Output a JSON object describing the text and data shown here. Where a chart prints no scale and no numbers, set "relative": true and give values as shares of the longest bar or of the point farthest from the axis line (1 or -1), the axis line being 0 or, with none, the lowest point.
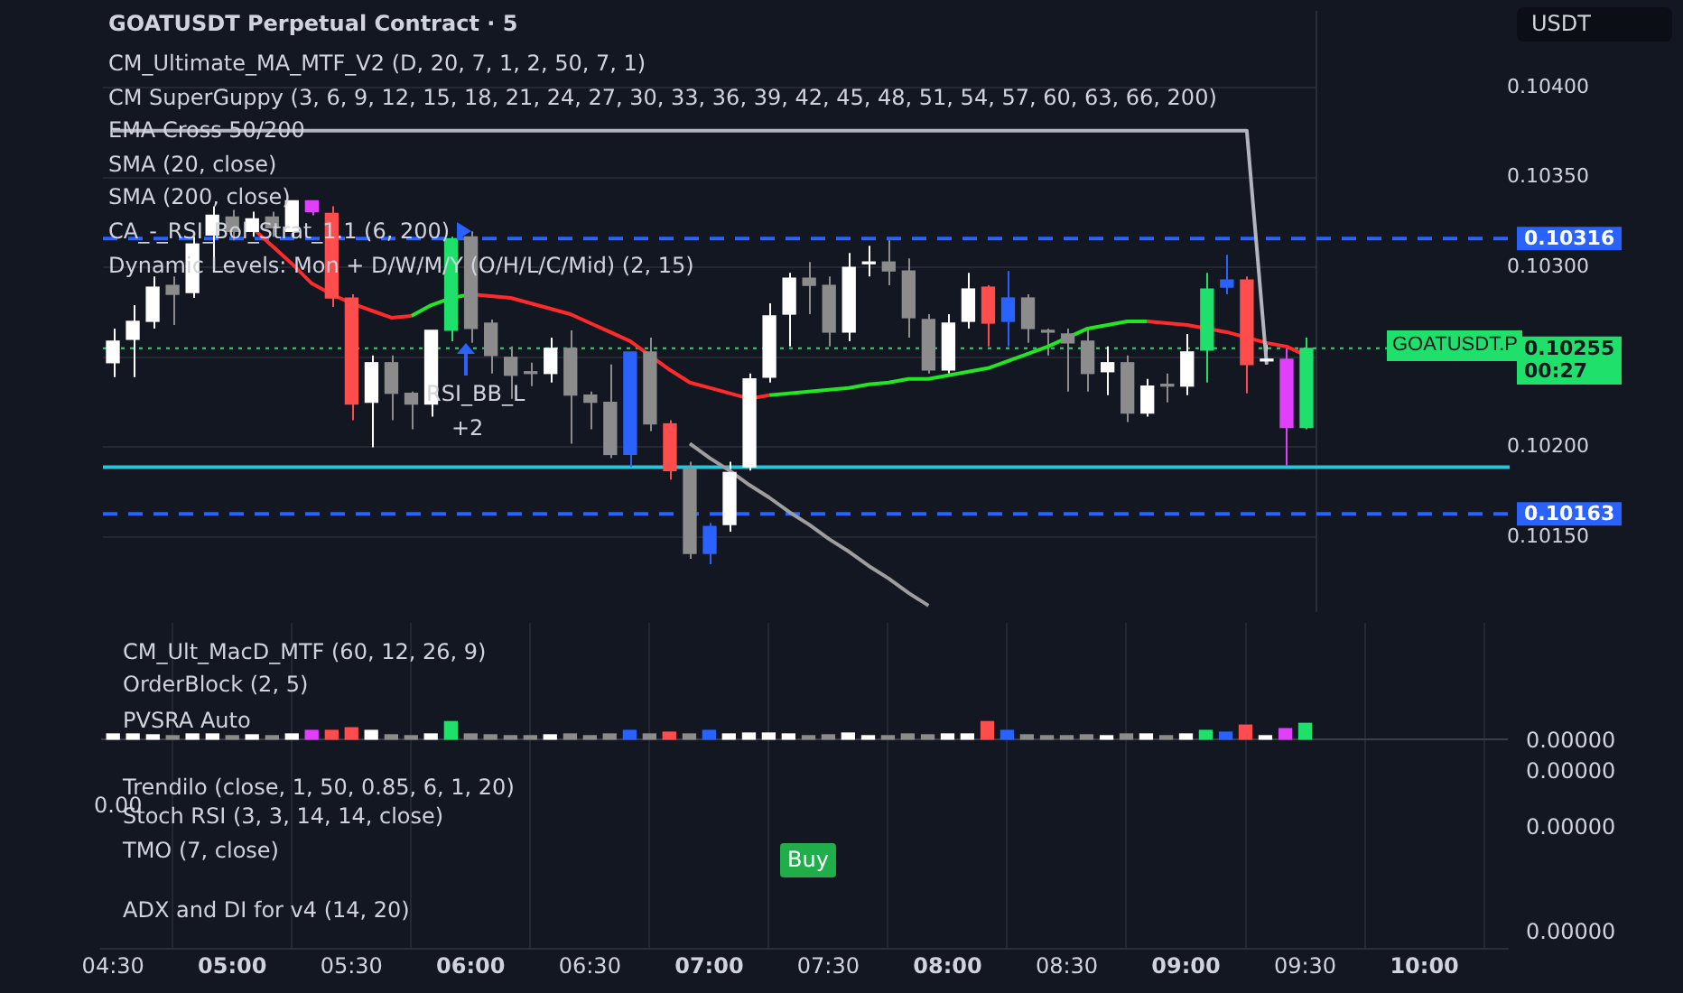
{
  "chart_data": [
    {
      "type": "candlestick",
      "title": "GOATUSDT Perpetual Contract · 5",
      "categories": [
        null,
        null,
        null,
        null,
        null,
        null,
        null,
        null,
        null,
        null,
        null,
        null,
        null,
        null,
        null,
        null,
        null,
        null,
        null,
        null,
        null,
        null,
        null,
        null,
        null,
        null,
        null,
        null,
        null,
        null,
        null,
        null,
        null,
        null,
        null,
        null,
        null,
        null,
        null,
        null,
        null,
        null,
        null,
        null,
        null,
        null,
        null,
        null,
        null,
        null,
        null,
        null,
        null,
        null,
        null,
        null,
        null,
        null,
        null,
        null,
        null
      ],
      "ohlc": [
        [
          0.10247,
          0.10266,
          0.10239,
          0.10259
        ],
        [
          0.1026,
          0.10279,
          0.10239,
          0.1027
        ],
        [
          0.1027,
          0.10295,
          0.10266,
          0.10289
        ],
        [
          0.1029,
          0.10295,
          0.10268,
          0.10285
        ],
        [
          0.10286,
          0.10317,
          0.10283,
          0.10313
        ],
        [
          0.10318,
          0.10334,
          0.10305,
          0.10329
        ],
        [
          0.10328,
          0.10332,
          0.10315,
          0.1032
        ],
        [
          0.1032,
          0.10331,
          0.10317,
          0.10327
        ],
        [
          0.10328,
          0.10331,
          0.10317,
          0.10322
        ],
        [
          0.1032,
          0.10337,
          0.10317,
          0.10337
        ],
        [
          0.10337,
          0.10337,
          0.10329,
          0.10331
        ],
        [
          0.1033,
          0.10334,
          0.10278,
          0.10283
        ],
        [
          0.10283,
          0.10285,
          0.10215,
          0.10224
        ],
        [
          0.10225,
          0.10251,
          0.102,
          0.10247
        ],
        [
          0.10247,
          0.10251,
          0.10215,
          0.1023
        ],
        [
          0.1023,
          0.10231,
          0.1021,
          0.10224
        ],
        [
          0.10224,
          0.10265,
          0.10217,
          0.10265
        ],
        [
          0.10265,
          0.10317,
          0.10259,
          0.10316
        ],
        [
          0.10317,
          0.1032,
          0.10258,
          0.10266
        ],
        [
          0.10269,
          0.10271,
          0.10241,
          0.10251
        ],
        [
          0.1025,
          0.10256,
          0.10227,
          0.1024
        ],
        [
          0.10241,
          0.10247,
          0.10234,
          0.10241
        ],
        [
          0.10241,
          0.10261,
          0.10236,
          0.10255
        ],
        [
          0.10255,
          0.10265,
          0.10202,
          0.10229
        ],
        [
          0.10229,
          0.10231,
          0.1021,
          0.10225
        ],
        [
          0.10225,
          0.10246,
          0.10194,
          0.10196
        ],
        [
          0.10196,
          0.10253,
          0.10189,
          0.10253
        ],
        [
          0.10253,
          0.10261,
          0.10209,
          0.10213
        ],
        [
          0.10213,
          0.10215,
          0.10182,
          0.10187
        ],
        [
          0.10188,
          0.10192,
          0.10138,
          0.10141
        ],
        [
          0.10141,
          0.10158,
          0.10135,
          0.10156
        ],
        [
          0.10157,
          0.10192,
          0.10153,
          0.10186
        ],
        [
          0.10189,
          0.10241,
          0.10187,
          0.10238
        ],
        [
          0.10239,
          0.1028,
          0.10236,
          0.10273
        ],
        [
          0.10274,
          0.10297,
          0.10256,
          0.10294
        ],
        [
          0.10294,
          0.10303,
          0.10274,
          0.1029
        ],
        [
          0.1029,
          0.10295,
          0.10256,
          0.10264
        ],
        [
          0.10264,
          0.10308,
          0.10259,
          0.103
        ],
        [
          0.10302,
          0.10312,
          0.10295,
          0.10302
        ],
        [
          0.10303,
          0.10315,
          0.1029,
          0.10298
        ],
        [
          0.10298,
          0.10305,
          0.10261,
          0.10272
        ],
        [
          0.10271,
          0.10274,
          0.10241,
          0.10243
        ],
        [
          0.10243,
          0.10274,
          0.10241,
          0.10269
        ],
        [
          0.1027,
          0.10297,
          0.10266,
          0.10288
        ],
        [
          0.10289,
          0.1029,
          0.10256,
          0.10269
        ],
        [
          0.1027,
          0.10298,
          0.10256,
          0.10283
        ],
        [
          0.10283,
          0.10285,
          0.10258,
          0.10266
        ],
        [
          0.10264,
          0.10266,
          0.10251,
          0.10264
        ],
        [
          0.10263,
          0.10266,
          0.10231,
          0.10258
        ],
        [
          0.10259,
          0.10266,
          0.10231,
          0.10241
        ],
        [
          0.10242,
          0.10256,
          0.10229,
          0.10247
        ],
        [
          0.10247,
          0.10251,
          0.10214,
          0.10219
        ],
        [
          0.10219,
          0.10238,
          0.10217,
          0.10234
        ],
        [
          0.10234,
          0.10241,
          0.10225,
          0.10234
        ],
        [
          0.10234,
          0.10263,
          0.10229,
          0.10253
        ],
        [
          0.10254,
          0.10297,
          0.10236,
          0.10288
        ],
        [
          0.10289,
          0.10307,
          0.10285,
          0.10293
        ],
        [
          0.10293,
          0.10295,
          0.1023,
          0.10246
        ],
        [
          0.10248,
          0.10258,
          0.10246,
          0.10248
        ],
        [
          0.10249,
          0.10256,
          0.1019,
          0.10211
        ],
        [
          0.10211,
          0.10261,
          0.1021,
          0.10255
        ]
      ],
      "colors": [
        "#ffffff",
        "#ffffff",
        "#ffffff",
        "#8c8c8c",
        "#ffffff",
        "#ffffff",
        "#8c8c8c",
        "#ffffff",
        "#8c8c8c",
        "#ffffff",
        "#e040fb",
        "#ff4d4d",
        "#ff4d4d",
        "#ffffff",
        "#8c8c8c",
        "#8c8c8c",
        "#ffffff",
        "#1fe06a",
        "#8c8c8c",
        "#8c8c8c",
        "#8c8c8c",
        "#8c8c8c",
        "#ffffff",
        "#8c8c8c",
        "#8c8c8c",
        "#8c8c8c",
        "#2962ff",
        "#8c8c8c",
        "#ff4d4d",
        "#8c8c8c",
        "#2962ff",
        "#ffffff",
        "#ffffff",
        "#ffffff",
        "#ffffff",
        "#8c8c8c",
        "#8c8c8c",
        "#ffffff",
        "#ffffff",
        "#8c8c8c",
        "#8c8c8c",
        "#8c8c8c",
        "#ffffff",
        "#ffffff",
        "#ff4d4d",
        "#2962ff",
        "#8c8c8c",
        "#8c8c8c",
        "#8c8c8c",
        "#8c8c8c",
        "#ffffff",
        "#8c8c8c",
        "#ffffff",
        "#8c8c8c",
        "#ffffff",
        "#1fe06a",
        "#2962ff",
        "#ff4d4d",
        "#ffffff",
        "#e040fb",
        "#1fe06a"
      ],
      "series": [
        {
          "type": "line",
          "color": "#b2b5be",
          "values": [
            0.10376,
            0.10376,
            0.10376,
            0.10376,
            0.10376,
            0.10376,
            0.10376,
            0.10376,
            0.10376,
            0.10376,
            0.10376,
            0.10376,
            0.10376,
            0.10376,
            0.10376,
            0.10376,
            0.10376,
            0.10376,
            0.10376,
            0.10376,
            0.10376,
            0.10376,
            0.10376,
            0.10376,
            0.10376,
            0.10376,
            0.10376,
            0.10376,
            0.10376,
            0.10376,
            0.10376,
            0.10376,
            0.10376,
            0.10376,
            0.10376,
            0.10376,
            0.10376,
            0.10376,
            0.10376,
            0.10376,
            0.10376,
            0.10376,
            0.10376,
            0.10376,
            0.10376,
            0.10376,
            0.10376,
            0.10376,
            0.10376,
            0.10376,
            0.10376,
            0.10376,
            0.10376,
            0.10376,
            0.10376,
            0.10376,
            0.10376,
            0.10376,
            0.10246,
            null,
            null
          ]
        },
        {
          "type": "line",
          "color": "#9e9e9e",
          "values": [
            null,
            null,
            null,
            null,
            null,
            null,
            null,
            null,
            null,
            null,
            null,
            null,
            null,
            null,
            null,
            null,
            null,
            null,
            null,
            null,
            null,
            null,
            null,
            null,
            null,
            null,
            null,
            null,
            null,
            0.10202,
            0.10194,
            0.10187,
            0.10179,
            0.10172,
            0.10164,
            0.10157,
            0.10149,
            0.10142,
            0.10134,
            0.10127,
            0.10119,
            0.10112,
            null,
            null,
            null,
            null,
            null,
            null,
            null,
            null,
            null,
            null,
            null,
            null,
            null,
            null,
            null,
            null,
            null,
            null,
            null
          ]
        },
        {
          "type": "line",
          "color": "#ff2a2a",
          "values": [
            null,
            null,
            null,
            null,
            null,
            null,
            null,
            0.10322,
            0.10312,
            0.10302,
            0.10291,
            0.10285,
            0.1028,
            0.10276,
            0.10272,
            0.10273,
            null,
            null,
            0.10285,
            0.10284,
            0.10283,
            0.1028,
            0.10277,
            0.10274,
            0.10269,
            0.10264,
            0.10259,
            0.10251,
            0.10243,
            0.10236,
            0.10233,
            0.1023,
            0.10227,
            0.10229,
            null,
            null,
            null,
            null,
            null,
            null,
            null,
            null,
            null,
            null,
            null,
            null,
            null,
            null,
            null,
            null,
            null,
            null,
            0.1027,
            0.10269,
            0.10268,
            0.10266,
            0.10264,
            0.10261,
            0.10258,
            0.10256,
            0.10251
          ]
        },
        {
          "type": "line",
          "color": "#22e622",
          "values": [
            null,
            null,
            null,
            null,
            null,
            null,
            null,
            null,
            null,
            null,
            null,
            null,
            null,
            null,
            null,
            0.10273,
            0.10279,
            0.10283,
            0.10285,
            null,
            null,
            null,
            null,
            null,
            null,
            null,
            null,
            null,
            null,
            null,
            null,
            null,
            null,
            0.10229,
            0.1023,
            0.10231,
            0.10232,
            0.10233,
            0.10235,
            0.10236,
            0.10238,
            0.10238,
            0.1024,
            0.10242,
            0.10244,
            0.10248,
            0.10252,
            0.10256,
            0.10261,
            0.10266,
            0.10268,
            0.1027,
            0.1027,
            null,
            null,
            null,
            null,
            null,
            null,
            null,
            null
          ]
        }
      ],
      "ref_lines": [
        {
          "axis": "y",
          "value": 0.10316,
          "label": "0.10316",
          "color": "#2962ff",
          "line_style": "dashed"
        },
        {
          "axis": "y",
          "value": 0.10163,
          "label": "0.10163",
          "color": "#2962ff",
          "line_style": "dashed"
        },
        {
          "axis": "y",
          "value": 0.10255,
          "label": "0.10255",
          "color": "#1fe06a",
          "line_style": "dotted"
        },
        {
          "axis": "y",
          "value": 0.10189,
          "color": "#26c6da",
          "line_style": "solid"
        }
      ],
      "ylim": [
        0.10109,
        0.10442
      ],
      "yticks": [
        {
          "value": 0.1015,
          "label": "0.10150"
        },
        {
          "value": 0.102,
          "label": "0.10200"
        },
        {
          "value": 0.1025,
          "label": null
        },
        {
          "value": 0.103,
          "label": "0.10300"
        },
        {
          "value": 0.1035,
          "label": "0.10350"
        },
        {
          "value": 0.104,
          "label": "0.10400"
        }
      ],
      "grid": "y",
      "tick_labels": "y",
      "annotations": [
        "CM_Ultimate_MA_MTF_V2 (D, 20, 7, 1, 2, 50, 7, 1)",
        "CM SuperGuppy (3, 6, 9, 12, 15, 18, 21, 24, 27, 30, 33, 36, 39, 42, 45, 48, 51, 54, 57, 60, 63, 66, 200)",
        "EMA Cross 50/200",
        "SMA (20, close)",
        "SMA (200, close)",
        "CA_-_RSI_Bol_Strat_1.1 (6, 200)",
        "Dynamic Levels: Mon + D/W/M/Y (O/H/L/C/Mid) (2, 15)",
        "RSI_BB_L",
        "+2",
        "USDT",
        "GOATUSDT.P",
        "00:27"
      ]
    },
    {
      "type": "bar",
      "relative": true,
      "x": [
        4.5,
        4.583,
        4.667,
        4.75,
        4.833,
        4.917,
        5,
        5.083,
        5.167,
        5.25,
        5.333,
        5.417,
        5.5,
        5.583,
        5.667,
        5.75,
        5.833,
        5.917,
        6,
        6.083,
        6.167,
        6.25,
        6.333,
        6.417,
        6.5,
        6.583,
        6.667,
        6.75,
        6.833,
        6.917,
        7,
        7.083,
        7.167,
        7.25,
        7.333,
        7.417,
        7.5,
        7.583,
        7.667,
        7.75,
        7.833,
        7.917,
        8,
        8.083,
        8.167,
        8.25,
        8.333,
        8.417,
        8.5,
        8.583,
        8.667,
        8.75,
        8.833,
        8.917,
        9,
        9.083,
        9.167,
        9.25,
        9.333,
        9.417,
        9.5
      ],
      "values": [
        0.3,
        0.3,
        0.25,
        0.2,
        0.3,
        0.3,
        0.2,
        0.25,
        0.2,
        0.3,
        0.5,
        0.5,
        0.65,
        0.5,
        0.25,
        0.2,
        0.3,
        1,
        0.3,
        0.25,
        0.2,
        0.2,
        0.25,
        0.3,
        0.2,
        0.3,
        0.5,
        0.3,
        0.4,
        0.3,
        0.5,
        0.3,
        0.35,
        0.35,
        0.3,
        0.2,
        0.25,
        0.35,
        0.2,
        0.2,
        0.3,
        0.25,
        0.3,
        0.3,
        1,
        0.5,
        0.25,
        0.2,
        0.2,
        0.25,
        0.2,
        0.3,
        0.3,
        0.2,
        0.3,
        0.5,
        0.4,
        0.8,
        0.2,
        0.6,
        0.9
      ],
      "colors": [
        "#ffffff",
        "#ffffff",
        "#ffffff",
        "#8c8c8c",
        "#ffffff",
        "#ffffff",
        "#8c8c8c",
        "#ffffff",
        "#8c8c8c",
        "#ffffff",
        "#e040fb",
        "#ff4d4d",
        "#ff4d4d",
        "#ffffff",
        "#8c8c8c",
        "#8c8c8c",
        "#ffffff",
        "#1fe06a",
        "#8c8c8c",
        "#8c8c8c",
        "#8c8c8c",
        "#8c8c8c",
        "#ffffff",
        "#8c8c8c",
        "#8c8c8c",
        "#8c8c8c",
        "#2962ff",
        "#8c8c8c",
        "#ff4d4d",
        "#8c8c8c",
        "#2962ff",
        "#ffffff",
        "#ffffff",
        "#ffffff",
        "#ffffff",
        "#8c8c8c",
        "#8c8c8c",
        "#ffffff",
        "#ffffff",
        "#8c8c8c",
        "#8c8c8c",
        "#8c8c8c",
        "#ffffff",
        "#ffffff",
        "#ff4d4d",
        "#2962ff",
        "#8c8c8c",
        "#8c8c8c",
        "#8c8c8c",
        "#8c8c8c",
        "#ffffff",
        "#8c8c8c",
        "#ffffff",
        "#8c8c8c",
        "#ffffff",
        "#1fe06a",
        "#2962ff",
        "#ff4d4d",
        "#ffffff",
        "#e040fb",
        "#1fe06a"
      ],
      "xlim": [
        4.45,
        10.35
      ],
      "xticks": [
        {
          "value": 4.5,
          "label": "04:30"
        },
        {
          "value": 5,
          "label": "05:00"
        },
        {
          "value": 5.5,
          "label": "05:30"
        },
        {
          "value": 6,
          "label": "06:00"
        },
        {
          "value": 6.5,
          "label": "06:30"
        },
        {
          "value": 7,
          "label": "07:00"
        },
        {
          "value": 7.5,
          "label": "07:30"
        },
        {
          "value": 8,
          "label": "08:00"
        },
        {
          "value": 8.5,
          "label": "08:30"
        },
        {
          "value": 9,
          "label": "09:00"
        },
        {
          "value": 9.5,
          "label": "09:30"
        },
        {
          "value": 10,
          "label": "10:00"
        }
      ],
      "grid": "x",
      "tick_labels": "x",
      "annotations": [
        "CM_Ult_MacD_MTF (60, 12, 26, 9)",
        "OrderBlock (2, 5)",
        "PVSRA Auto",
        "Trendilo (close, 1, 50, 0.85, 6, 1, 20)",
        "Stoch RSI (3, 3, 14, 14, close)",
        "TMO (7, close)",
        "ADX and DI for v4 (14, 20)",
        "Buy",
        "0.00000",
        "0.00000",
        "0.00000",
        "0.00000",
        "0.00"
      ]
    }
  ]
}
